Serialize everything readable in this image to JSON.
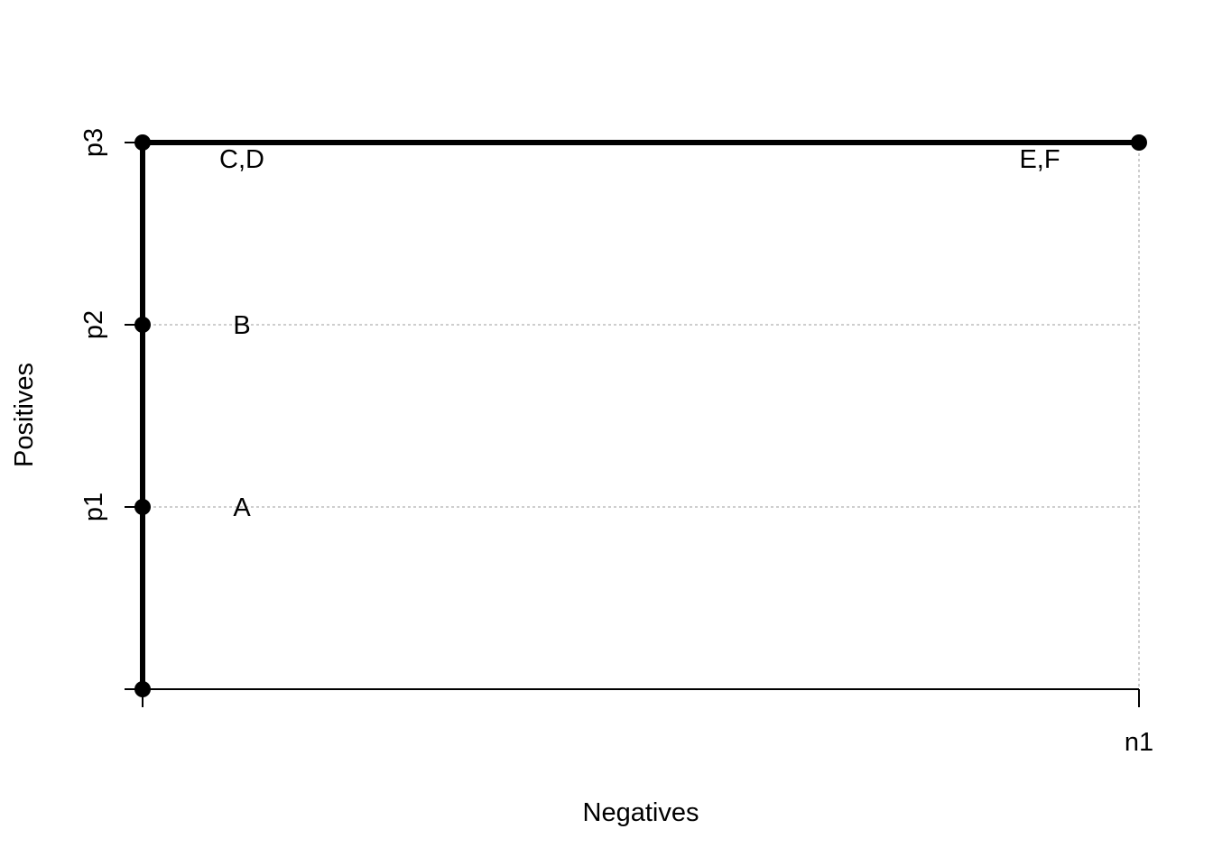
{
  "chart_data": {
    "type": "line",
    "title": "",
    "xlabel": "Negatives",
    "ylabel": "Positives",
    "xlim": [
      0,
      1
    ],
    "ylim": [
      0,
      3
    ],
    "x_ticks": [
      {
        "value": 0,
        "label": ""
      },
      {
        "value": 1,
        "label": "n1"
      }
    ],
    "y_ticks": [
      {
        "value": 0,
        "label": ""
      },
      {
        "value": 1,
        "label": "p1"
      },
      {
        "value": 2,
        "label": "p2"
      },
      {
        "value": 3,
        "label": "p3"
      }
    ],
    "grid": {
      "horizontal_at": [
        1,
        2
      ],
      "vertical_at": [
        1
      ],
      "style": "dotted"
    },
    "series": [
      {
        "x": [
          0,
          0,
          0,
          0,
          1
        ],
        "y": [
          0,
          1,
          2,
          3,
          3
        ]
      }
    ],
    "point_labels": [
      {
        "label": "A",
        "x": 0,
        "y": 1
      },
      {
        "label": "B",
        "x": 0,
        "y": 2
      },
      {
        "label": "C,D",
        "x": 0,
        "y": 3
      },
      {
        "label": "E,F",
        "x": 1,
        "y": 3
      }
    ],
    "colors": {
      "line": "#000000",
      "grid": "#bebebe"
    }
  }
}
